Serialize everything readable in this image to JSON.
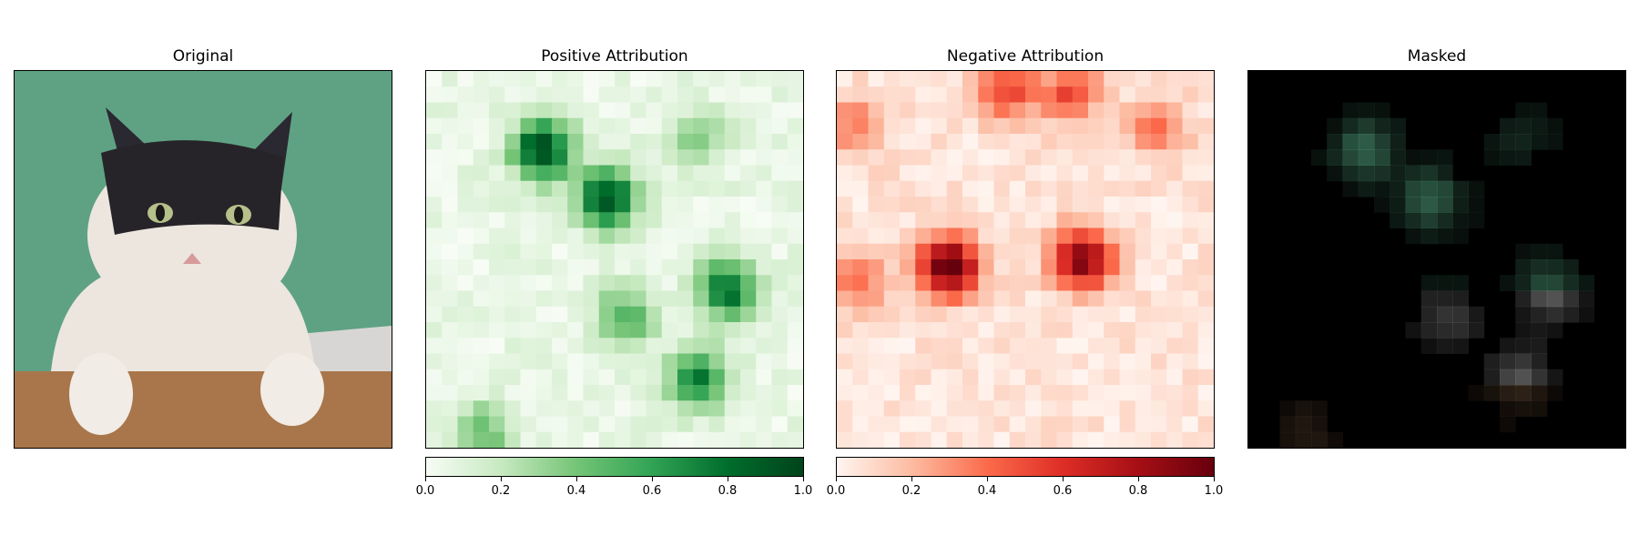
{
  "chart_data": [
    {
      "type": "image",
      "title": "Original",
      "description_colors": {
        "background": "#5fa283",
        "table": "#a8764a",
        "fur_white": "#efe9e3",
        "fur_dark": "#24222a"
      }
    },
    {
      "type": "heatmap",
      "title": "Positive Attribution",
      "colormap": "Greens",
      "colorbar": {
        "range": [
          0.0,
          1.0
        ],
        "ticks": [
          "0.0",
          "0.2",
          "0.4",
          "0.6",
          "0.8",
          "1.0"
        ]
      },
      "hotspots": [
        {
          "center": [
            0.31,
            0.21
          ],
          "value": 0.95
        },
        {
          "center": [
            0.48,
            0.34
          ],
          "value": 0.9
        },
        {
          "center": [
            0.8,
            0.58
          ],
          "value": 0.75
        },
        {
          "center": [
            0.72,
            0.82
          ],
          "value": 0.7
        },
        {
          "center": [
            0.53,
            0.65
          ],
          "value": 0.45
        },
        {
          "center": [
            0.15,
            0.96
          ],
          "value": 0.4
        },
        {
          "center": [
            0.72,
            0.18
          ],
          "value": 0.3
        }
      ]
    },
    {
      "type": "heatmap",
      "title": "Negative Attribution",
      "colormap": "Reds",
      "colorbar": {
        "range": [
          0.0,
          1.0
        ],
        "ticks": [
          "0.0",
          "0.2",
          "0.4",
          "0.6",
          "0.8",
          "1.0"
        ]
      },
      "hotspots": [
        {
          "center": [
            0.3,
            0.52
          ],
          "value": 1.0
        },
        {
          "center": [
            0.65,
            0.5
          ],
          "value": 0.9
        },
        {
          "center": [
            0.45,
            0.05
          ],
          "value": 0.5
        },
        {
          "center": [
            0.62,
            0.06
          ],
          "value": 0.45
        },
        {
          "center": [
            0.06,
            0.55
          ],
          "value": 0.35
        },
        {
          "center": [
            0.05,
            0.15
          ],
          "value": 0.3
        },
        {
          "center": [
            0.85,
            0.15
          ],
          "value": 0.3
        }
      ]
    },
    {
      "type": "image",
      "title": "Masked",
      "description_colors": {
        "background": "#000000"
      }
    }
  ]
}
